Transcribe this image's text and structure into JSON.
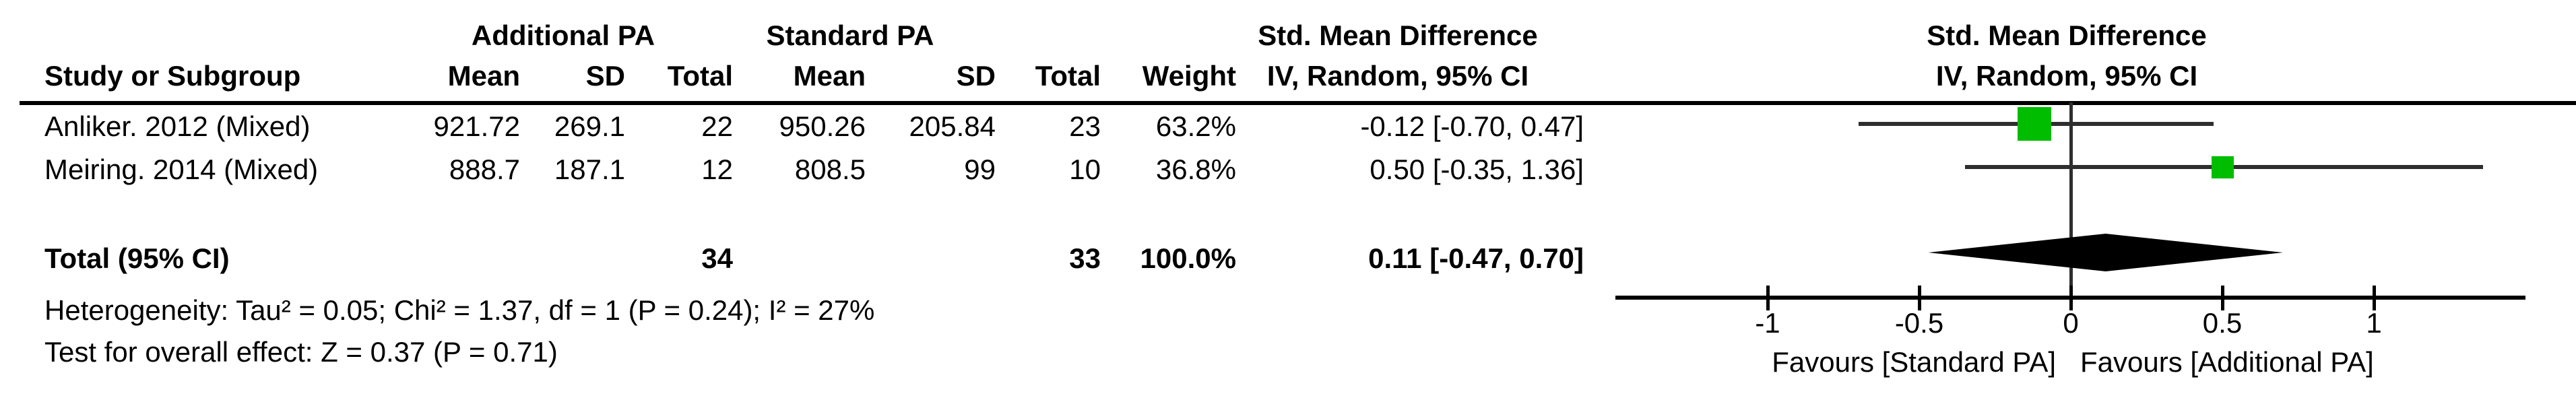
{
  "table": {
    "group_headers": {
      "additional_pa": "Additional PA",
      "standard_pa": "Standard PA",
      "smd_col": "Std. Mean Difference"
    },
    "col_headers": {
      "study": "Study or Subgroup",
      "mean1": "Mean",
      "sd1": "SD",
      "total1": "Total",
      "mean2": "Mean",
      "sd2": "SD",
      "total2": "Total",
      "weight": "Weight",
      "ci": "IV, Random, 95% CI"
    },
    "rows": [
      {
        "study": "Anliker. 2012 (Mixed)",
        "mean1": "921.72",
        "sd1": "269.1",
        "total1": "22",
        "mean2": "950.26",
        "sd2": "205.84",
        "total2": "23",
        "weight": "63.2%",
        "ci": "-0.12 [-0.70, 0.47]"
      },
      {
        "study": "Meiring. 2014 (Mixed)",
        "mean1": "888.7",
        "sd1": "187.1",
        "total1": "12",
        "mean2": "808.5",
        "sd2": "99",
        "total2": "10",
        "weight": "36.8%",
        "ci": "0.50 [-0.35, 1.36]"
      }
    ],
    "total_row": {
      "label": "Total (95% CI)",
      "total1": "34",
      "total2": "33",
      "weight": "100.0%",
      "ci": "0.11 [-0.47, 0.70]"
    },
    "heterogeneity": "Heterogeneity: Tau² = 0.05; Chi² = 1.37, df = 1 (P = 0.24); I² = 27%",
    "overall_effect": "Test for overall effect: Z = 0.37 (P = 0.71)"
  },
  "plot": {
    "header_line1": "Std. Mean Difference",
    "header_line2": "IV, Random, 95% CI",
    "favours_left": "Favours [Standard PA]",
    "favours_right": "Favours [Additional PA]"
  },
  "chart_data": {
    "type": "forest",
    "effect_measure": "Std. Mean Difference",
    "method": "IV, Random, 95% CI",
    "studies": [
      {
        "name": "Anliker. 2012 (Mixed)",
        "estimate": -0.12,
        "ci_low": -0.7,
        "ci_high": 0.47,
        "weight_pct": 63.2,
        "marker_px": 50
      },
      {
        "name": "Meiring. 2014 (Mixed)",
        "estimate": 0.5,
        "ci_low": -0.35,
        "ci_high": 1.36,
        "weight_pct": 36.8,
        "marker_px": 33
      }
    ],
    "total": {
      "estimate": 0.11,
      "ci_low": -0.47,
      "ci_high": 0.7
    },
    "axis": {
      "ticks": [
        -1,
        -0.5,
        0,
        0.5,
        1
      ],
      "tick_labels": [
        "-1",
        "-0.5",
        "0",
        "0.5",
        "1"
      ],
      "xlim": [
        -1.5,
        1.5
      ]
    },
    "marker_color": "#00bd00",
    "line_color": "#2e2e2e",
    "axis_color": "#000000",
    "diamond_color": "#000000"
  }
}
